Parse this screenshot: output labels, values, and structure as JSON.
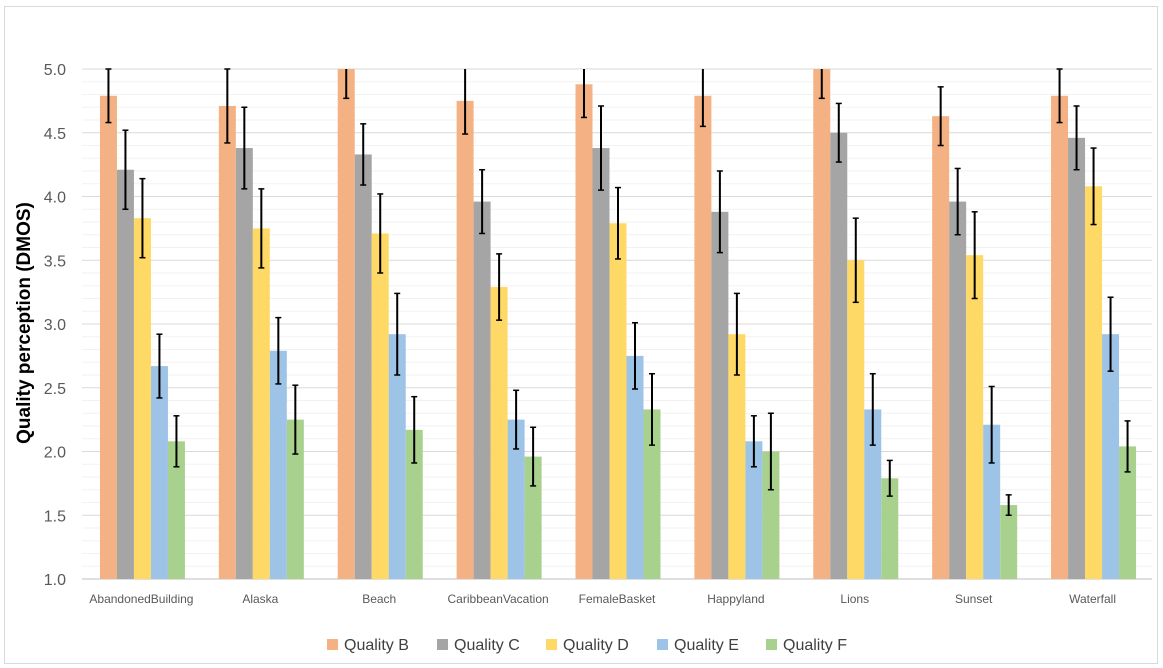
{
  "chart_data": {
    "type": "bar",
    "title": "",
    "xlabel": "",
    "ylabel": "Quality perception (DMOS)",
    "ylim": [
      1.0,
      5.0
    ],
    "yticks": [
      "1.0",
      "1.5",
      "2.0",
      "2.5",
      "3.0",
      "3.5",
      "4.0",
      "4.5",
      "5.0"
    ],
    "grid": true,
    "legend_position": "bottom",
    "error_bars": true,
    "categories": [
      "AbandonedBuilding",
      "Alaska",
      "Beach",
      "CaribbeanVacation",
      "FemaleBasket",
      "Happyland",
      "Lions",
      "Sunset",
      "Waterfall"
    ],
    "series": [
      {
        "name": "Quality B",
        "color": "#f4b183",
        "values": [
          4.79,
          4.71,
          5.0,
          4.75,
          4.88,
          4.79,
          5.0,
          4.63,
          4.79
        ],
        "errors": [
          0.21,
          0.29,
          0.23,
          0.26,
          0.26,
          0.24,
          0.23,
          0.23,
          0.21
        ]
      },
      {
        "name": "Quality C",
        "color": "#a5a5a5",
        "values": [
          4.21,
          4.38,
          4.33,
          3.96,
          4.38,
          3.88,
          4.5,
          3.96,
          4.46
        ],
        "errors": [
          0.31,
          0.32,
          0.24,
          0.25,
          0.33,
          0.32,
          0.23,
          0.26,
          0.25
        ]
      },
      {
        "name": "Quality D",
        "color": "#ffd966",
        "values": [
          3.83,
          3.75,
          3.71,
          3.29,
          3.79,
          2.92,
          3.5,
          3.54,
          4.08
        ],
        "errors": [
          0.31,
          0.31,
          0.31,
          0.26,
          0.28,
          0.32,
          0.33,
          0.34,
          0.3
        ]
      },
      {
        "name": "Quality E",
        "color": "#9dc3e6",
        "values": [
          2.67,
          2.79,
          2.92,
          2.25,
          2.75,
          2.08,
          2.33,
          2.21,
          2.92
        ],
        "errors": [
          0.25,
          0.26,
          0.32,
          0.23,
          0.26,
          0.2,
          0.28,
          0.3,
          0.29
        ]
      },
      {
        "name": "Quality F",
        "color": "#a9d18e",
        "values": [
          2.08,
          2.25,
          2.17,
          1.96,
          2.33,
          2.0,
          1.79,
          1.58,
          2.04
        ],
        "errors": [
          0.2,
          0.27,
          0.26,
          0.23,
          0.28,
          0.3,
          0.14,
          0.08,
          0.2
        ]
      }
    ]
  }
}
